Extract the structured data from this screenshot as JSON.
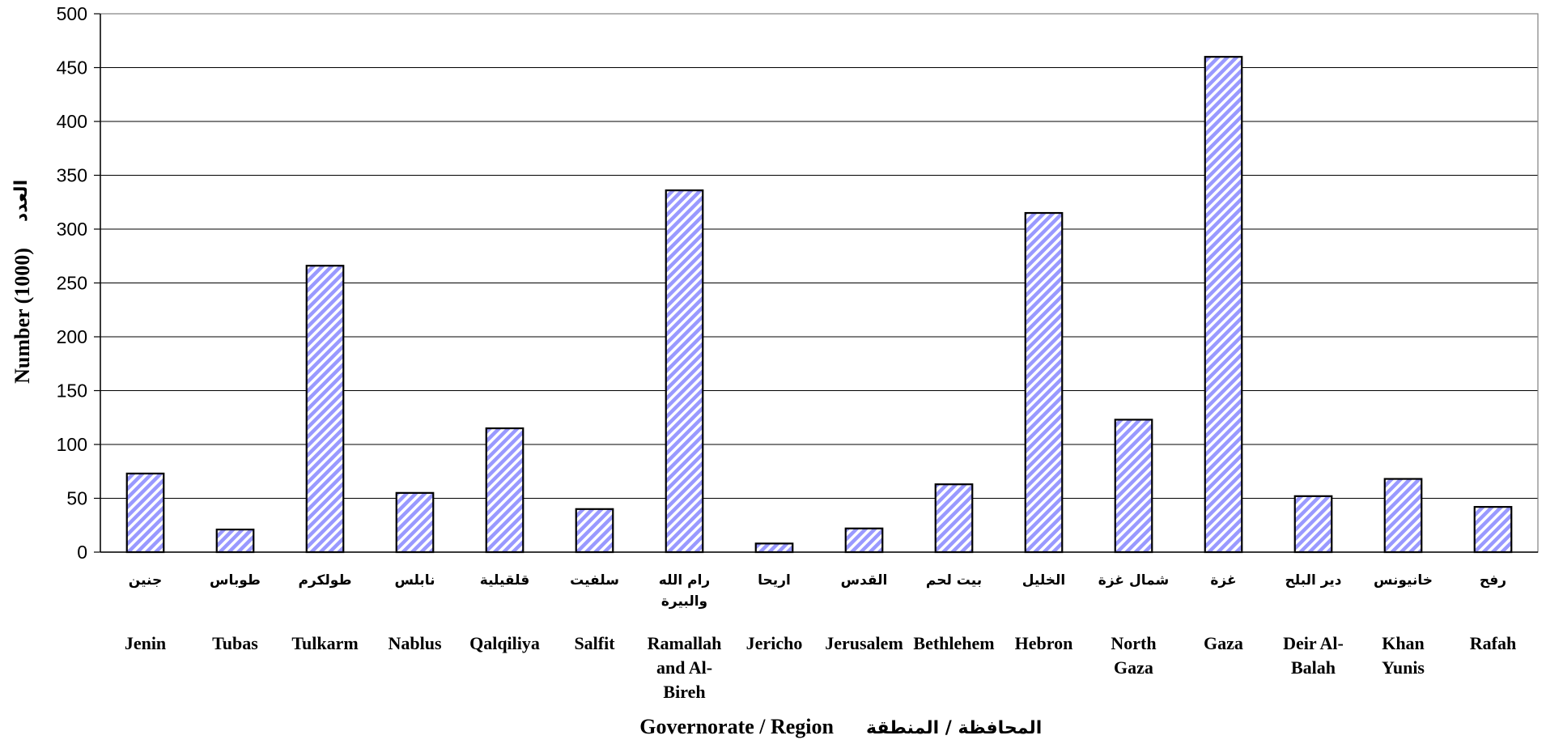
{
  "chart_data": {
    "type": "bar",
    "categories_en": [
      "Jenin",
      "Tubas",
      "Tulkarm",
      "Nablus",
      "Qalqiliya",
      "Salfit",
      "Ramallah and Al-Bireh",
      "Jericho",
      "Jerusalem",
      "Bethlehem",
      "Hebron",
      "North Gaza",
      "Gaza",
      "Deir Al-Balah",
      "Khan Yunis",
      "Rafah"
    ],
    "categories_en_lines": [
      [
        "Jenin"
      ],
      [
        "Tubas"
      ],
      [
        "Tulkarm"
      ],
      [
        "Nablus"
      ],
      [
        "Qalqiliya"
      ],
      [
        "Salfit"
      ],
      [
        "Ramallah",
        "and Al-",
        "Bireh"
      ],
      [
        "Jericho"
      ],
      [
        "Jerusalem"
      ],
      [
        "Bethlehem"
      ],
      [
        "Hebron"
      ],
      [
        "North",
        "Gaza"
      ],
      [
        "Gaza"
      ],
      [
        "Deir Al-",
        "Balah"
      ],
      [
        "Khan",
        "Yunis"
      ],
      [
        "Rafah"
      ]
    ],
    "categories_ar": [
      "جنين",
      "طوباس",
      "طولكرم",
      "نابلس",
      "قلقيلية",
      "سلفيت",
      "رام الله والبيرة",
      "اريحا",
      "القدس",
      "بيت لحم",
      "الخليل",
      "شمال غزة",
      "غزة",
      "دير البلح",
      "خانيونس",
      "رفح"
    ],
    "categories_ar_lines": [
      [
        "جنين"
      ],
      [
        "طوباس"
      ],
      [
        "طولكرم"
      ],
      [
        "نابلس"
      ],
      [
        "قلقيلية"
      ],
      [
        "سلفيت"
      ],
      [
        "رام الله",
        "والبيرة"
      ],
      [
        "اريحا"
      ],
      [
        "القدس"
      ],
      [
        "بيت لحم"
      ],
      [
        "الخليل"
      ],
      [
        "شمال غزة"
      ],
      [
        "غزة"
      ],
      [
        "دير البلح"
      ],
      [
        "خانيونس"
      ],
      [
        "رفح"
      ]
    ],
    "values": [
      73,
      21,
      266,
      55,
      115,
      40,
      336,
      8,
      22,
      63,
      315,
      123,
      460,
      52,
      68,
      42
    ],
    "ylim": [
      0,
      500
    ],
    "yticks": [
      0,
      50,
      100,
      150,
      200,
      250,
      300,
      350,
      400,
      450,
      500
    ],
    "ylabel_en": "Number (1000)",
    "ylabel_ar": "العدد",
    "xlabel_en": "Governorate / Region",
    "xlabel_ar": "المحافظة / المنطقة",
    "grid": true,
    "bar_color": "#9999ff",
    "bar_pattern": "diagonal-stripes"
  }
}
